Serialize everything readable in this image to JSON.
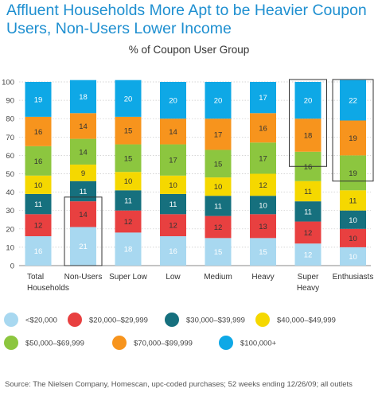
{
  "title": "Affluent Households More Apt to be Heavier Coupon Users, Non-Users Lower Income",
  "subtitle": "% of Coupon User Group",
  "source": "Source: The Nielsen Company, Homescan, upc-coded purchases; 52 weeks ending 12/26/09; all outlets",
  "colors": [
    "#a8d8f0",
    "#e84040",
    "#16707e",
    "#f5d800",
    "#8cc63f",
    "#f7941d",
    "#0ea8e6"
  ],
  "chart_data": {
    "type": "bar",
    "stacked": true,
    "title": "% of Coupon User Group",
    "ylim": [
      0,
      100
    ],
    "yticks": [
      "0",
      "10",
      "20",
      "30",
      "40",
      "50",
      "60",
      "70",
      "80",
      "90",
      "100"
    ],
    "categories": [
      [
        "Total",
        "Households"
      ],
      [
        "Non-Users"
      ],
      [
        "Super Low"
      ],
      [
        "Low"
      ],
      [
        "Medium"
      ],
      [
        "Heavy"
      ],
      [
        "Super",
        "Heavy"
      ],
      [
        "Enthusiasts"
      ]
    ],
    "highlighted": [
      1,
      6,
      7
    ],
    "series": [
      {
        "name": "<$20,000",
        "values": [
          16,
          21,
          18,
          16,
          15,
          15,
          12,
          10
        ]
      },
      {
        "name": "$20,000–$29,999",
        "values": [
          12,
          14,
          12,
          12,
          12,
          13,
          12,
          10
        ]
      },
      {
        "name": "$30,000–$39,999",
        "values": [
          11,
          11,
          11,
          11,
          11,
          10,
          11,
          10
        ]
      },
      {
        "name": "$40,000–$49,999",
        "values": [
          10,
          9,
          10,
          10,
          10,
          12,
          11,
          11
        ]
      },
      {
        "name": "$50,000–$69,999",
        "values": [
          16,
          14,
          15,
          17,
          15,
          17,
          16,
          19
        ]
      },
      {
        "name": "$70,000–$99,999",
        "values": [
          16,
          14,
          15,
          14,
          17,
          16,
          18,
          19
        ]
      },
      {
        "name": "$100,000+",
        "values": [
          19,
          18,
          20,
          20,
          20,
          17,
          20,
          22
        ]
      }
    ],
    "legend_position": "bottom"
  }
}
